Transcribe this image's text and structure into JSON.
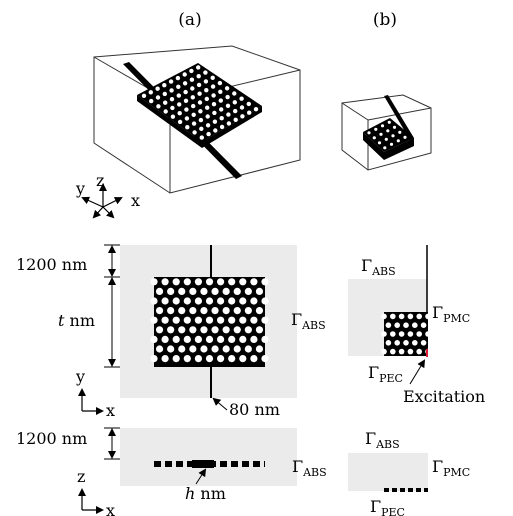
{
  "panels": {
    "a": {
      "label": "(a)"
    },
    "b": {
      "label": "(b)"
    }
  },
  "axes_3d": {
    "y": "y",
    "z": "z",
    "x": "x"
  },
  "axes_xy": {
    "y": "y",
    "x": "x"
  },
  "axes_xz": {
    "z": "z",
    "x": "x"
  },
  "dims": {
    "pml_1": "1200 nm",
    "thickness": "t nm",
    "waveguide_width": "80 nm",
    "pml_2": "1200 nm",
    "slab": "h nm"
  },
  "boundaries": {
    "abs_top_xy": "ΓABS",
    "abs_left_xy": "ΓABS",
    "pmc_xy": "ΓPMC",
    "pec_xy": "ΓPEC",
    "excitation": "Excitation",
    "abs_top_xz": "ΓABS",
    "abs_left_xz": "ΓABS",
    "pmc_xz": "ΓPMC",
    "pec_xz": "ΓPEC"
  },
  "colors": {
    "domain_fill": "#ebebeb",
    "structure": "#000000",
    "holes": "#ffffff",
    "excitation": "#e0203a"
  }
}
